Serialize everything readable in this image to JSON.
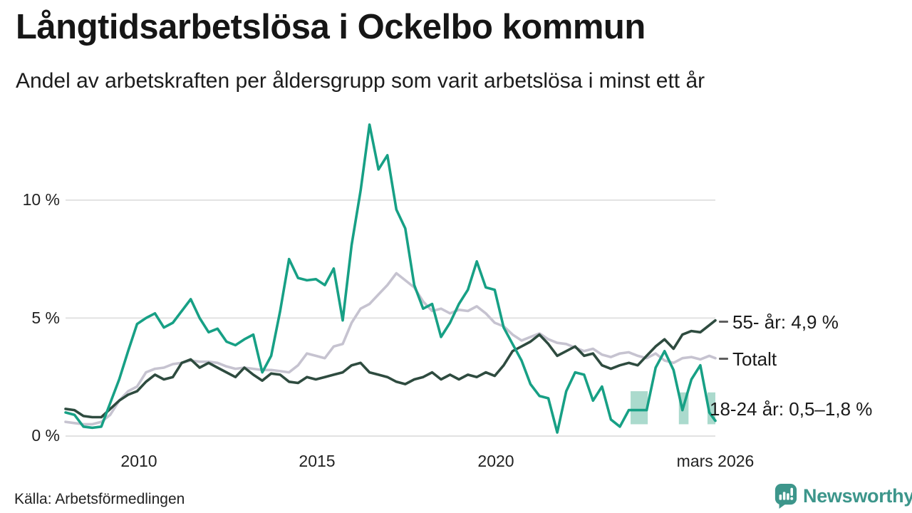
{
  "header": {
    "title": "Långtidsarbetslösa i Ockelbo kommun",
    "subtitle": "Andel av arbetskraften per åldersgrupp som varit arbetslösa i minst ett år"
  },
  "footer": {
    "source": "Källa: Arbetsförmedlingen",
    "brand": "Newsworthy",
    "brand_icon": "newsworthy-speech-bubble-bar-chart-icon"
  },
  "colors": {
    "accent_teal": "#17a085",
    "dark_green": "#2e4b3f",
    "gray": "#c6c3d0",
    "band": "#abdacd",
    "grid": "#e2e2e2",
    "text": "#1a1a1a",
    "logo_teal": "#3d968b",
    "dash": "#5f5f5f"
  },
  "chart_data": {
    "type": "line",
    "title": "Långtidsarbetslösa i Ockelbo kommun",
    "subtitle": "Andel av arbetskraften per åldersgrupp som varit arbetslösa i minst ett år",
    "xlabel": "",
    "ylabel": "",
    "grid": true,
    "legend_position": "right-end-labels",
    "xlim": [
      2008,
      2026.17
    ],
    "ylim": [
      0,
      13.8
    ],
    "y_ticks": [
      {
        "value": 0,
        "label": "0 %"
      },
      {
        "value": 5,
        "label": "5 %"
      },
      {
        "value": 10,
        "label": "10 %"
      }
    ],
    "x_ticks": [
      {
        "value": 2010,
        "label": "2010"
      },
      {
        "value": 2015,
        "label": "2015"
      },
      {
        "value": 2020,
        "label": "2020"
      },
      {
        "value": 2026.17,
        "label": "mars 2026"
      }
    ],
    "x": [
      2008,
      2008.25,
      2008.5,
      2008.75,
      2009,
      2009.25,
      2009.5,
      2009.75,
      2010,
      2010.25,
      2010.5,
      2010.75,
      2011,
      2011.25,
      2011.5,
      2011.75,
      2012,
      2012.25,
      2012.5,
      2012.75,
      2013,
      2013.25,
      2013.5,
      2013.75,
      2014,
      2014.25,
      2014.5,
      2014.75,
      2015,
      2015.25,
      2015.5,
      2015.75,
      2016,
      2016.25,
      2016.5,
      2016.75,
      2017,
      2017.25,
      2017.5,
      2017.75,
      2018,
      2018.25,
      2018.5,
      2018.75,
      2019,
      2019.25,
      2019.5,
      2019.75,
      2020,
      2020.25,
      2020.5,
      2020.75,
      2021,
      2021.25,
      2021.5,
      2021.75,
      2022,
      2022.25,
      2022.5,
      2022.75,
      2023,
      2023.25,
      2023.5,
      2023.75,
      2024,
      2024.25,
      2024.5,
      2024.75,
      2025,
      2025.25,
      2025.5,
      2025.75,
      2026,
      2026.17
    ],
    "series": [
      {
        "name": "Totalt",
        "color": "#c6c3d0",
        "end_label": "Totalt",
        "end_value": 3.3,
        "values": [
          0.6,
          0.55,
          0.5,
          0.5,
          0.6,
          0.9,
          1.5,
          1.9,
          2.1,
          2.7,
          2.85,
          2.9,
          3.05,
          3.1,
          3.2,
          3.15,
          3.15,
          3.1,
          2.95,
          2.85,
          2.9,
          2.85,
          2.8,
          2.8,
          2.75,
          2.7,
          3.0,
          3.5,
          3.4,
          3.3,
          3.8,
          3.9,
          4.8,
          5.4,
          5.6,
          6.0,
          6.4,
          6.9,
          6.6,
          6.3,
          5.7,
          5.3,
          5.4,
          5.2,
          5.35,
          5.3,
          5.5,
          5.2,
          4.8,
          4.65,
          4.3,
          4.05,
          4.2,
          4.35,
          4.1,
          3.95,
          3.9,
          3.75,
          3.6,
          3.7,
          3.45,
          3.35,
          3.5,
          3.55,
          3.4,
          3.3,
          3.5,
          3.2,
          3.1,
          3.3,
          3.35,
          3.25,
          3.4,
          3.3
        ]
      },
      {
        "name": "55- år",
        "color": "#2e4b3f",
        "end_label": "55- år: 4,9 %",
        "end_value": 4.9,
        "values": [
          1.15,
          1.1,
          0.85,
          0.8,
          0.8,
          1.15,
          1.5,
          1.75,
          1.9,
          2.3,
          2.6,
          2.4,
          2.5,
          3.1,
          3.25,
          2.9,
          3.1,
          2.9,
          2.7,
          2.5,
          2.9,
          2.6,
          2.35,
          2.65,
          2.6,
          2.3,
          2.25,
          2.5,
          2.4,
          2.5,
          2.6,
          2.7,
          3.0,
          3.1,
          2.7,
          2.6,
          2.5,
          2.3,
          2.2,
          2.4,
          2.5,
          2.7,
          2.4,
          2.6,
          2.4,
          2.6,
          2.5,
          2.7,
          2.55,
          3.0,
          3.6,
          3.8,
          4.0,
          4.3,
          3.9,
          3.4,
          3.6,
          3.8,
          3.4,
          3.5,
          3.0,
          2.85,
          3.0,
          3.1,
          3.0,
          3.4,
          3.8,
          4.1,
          3.7,
          4.3,
          4.45,
          4.4,
          4.7,
          4.9
        ]
      },
      {
        "name": "18-24 år",
        "color": "#17a085",
        "end_label": "18-24 år: 0,5–1,8 %",
        "end_value_range": [
          0.5,
          1.8
        ],
        "values": [
          1.0,
          0.9,
          0.4,
          0.35,
          0.4,
          1.4,
          2.4,
          3.6,
          4.75,
          5.0,
          5.2,
          4.6,
          4.8,
          5.3,
          5.8,
          5.0,
          4.4,
          4.55,
          4.0,
          3.85,
          4.1,
          4.3,
          2.7,
          3.4,
          5.3,
          7.5,
          6.7,
          6.6,
          6.65,
          6.4,
          7.1,
          4.9,
          8.1,
          10.4,
          13.2,
          11.3,
          11.9,
          9.6,
          8.8,
          6.4,
          5.4,
          5.6,
          4.2,
          4.8,
          5.6,
          6.2,
          7.4,
          6.3,
          6.2,
          4.6,
          3.9,
          3.2,
          2.2,
          1.7,
          1.6,
          0.15,
          1.9,
          2.7,
          2.6,
          1.5,
          2.1,
          0.7,
          0.4,
          1.1,
          1.1,
          1.1,
          2.9,
          3.6,
          2.8,
          1.1,
          2.4,
          3.0,
          1.0,
          0.65
        ]
      }
    ],
    "uncertainty_bands": {
      "series": "18-24 år",
      "color": "#abdacd",
      "lo_hi_label": "0,5–1,8 %",
      "segments": [
        {
          "x0": 2023.8,
          "x1": 2024.28,
          "lo": 0.5,
          "hi": 1.9
        },
        {
          "x0": 2025.15,
          "x1": 2025.42,
          "lo": 0.5,
          "hi": 1.85
        },
        {
          "x0": 2025.95,
          "x1": 2026.17,
          "lo": 0.5,
          "hi": 1.85
        }
      ]
    }
  }
}
